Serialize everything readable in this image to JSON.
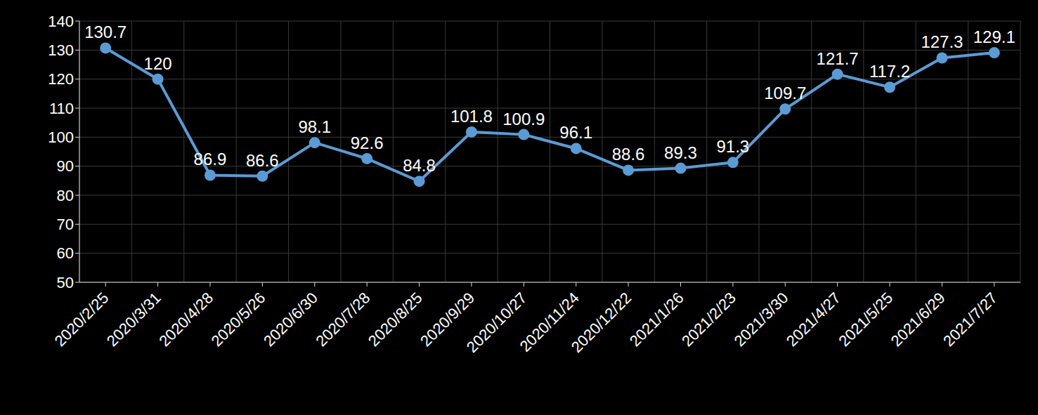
{
  "chart_data": {
    "type": "line",
    "categories": [
      "2020/2/25",
      "2020/3/31",
      "2020/4/28",
      "2020/5/26",
      "2020/6/30",
      "2020/7/28",
      "2020/8/25",
      "2020/9/29",
      "2020/10/27",
      "2020/11/24",
      "2020/12/22",
      "2021/1/26",
      "2021/2/23",
      "2021/3/30",
      "2021/4/27",
      "2021/5/25",
      "2021/6/29",
      "2021/7/27"
    ],
    "values": [
      130.7,
      120,
      86.9,
      86.6,
      98.1,
      92.6,
      84.8,
      101.8,
      100.9,
      96.1,
      88.6,
      89.3,
      91.3,
      109.7,
      121.7,
      117.2,
      127.3,
      129.1
    ],
    "color": "#5b9bd5",
    "marker": "circle",
    "ylim": [
      50,
      140
    ],
    "yticks": [
      50,
      60,
      70,
      80,
      90,
      100,
      110,
      120,
      130,
      140
    ],
    "grid": true,
    "data_labels": true
  }
}
